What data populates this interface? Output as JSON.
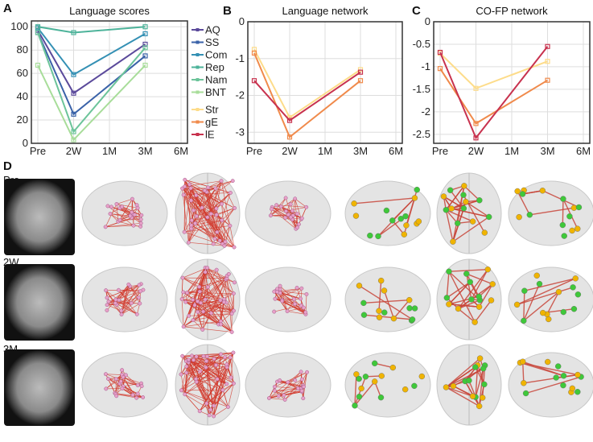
{
  "panels": {
    "A": "A",
    "B": "B",
    "C": "C",
    "D": "D"
  },
  "rows": [
    "Pre",
    "2W",
    "3M"
  ],
  "chart_data": [
    {
      "type": "line",
      "title": "Language scores",
      "categories": [
        "Pre",
        "2W",
        "1M",
        "3M",
        "6M"
      ],
      "ylim": [
        0,
        105
      ],
      "yticks": [
        0,
        20,
        40,
        60,
        80,
        100
      ],
      "series": [
        {
          "name": "AQ",
          "color": "#5b4a9b",
          "values": [
            97,
            43,
            null,
            85,
            null
          ]
        },
        {
          "name": "SS",
          "color": "#3a62a8",
          "values": [
            95,
            25,
            null,
            75,
            null
          ]
        },
        {
          "name": "Com",
          "color": "#3490b4",
          "values": [
            99,
            59,
            null,
            94,
            null
          ]
        },
        {
          "name": "Rep",
          "color": "#4db39a",
          "values": [
            100,
            95,
            null,
            100,
            null
          ]
        },
        {
          "name": "Nam",
          "color": "#6cc49a",
          "values": [
            95,
            10,
            null,
            82,
            null
          ]
        },
        {
          "name": "BNT",
          "color": "#a8dd9a",
          "values": [
            67,
            3,
            null,
            67,
            null
          ]
        }
      ],
      "legend_extra": [
        {
          "name": "Str",
          "color": "#fddc8a"
        },
        {
          "name": "gE",
          "color": "#f08a4b"
        },
        {
          "name": "lE",
          "color": "#c8324e"
        }
      ],
      "legend": "right",
      "grid": true
    },
    {
      "type": "line",
      "title": "Language network",
      "categories": [
        "Pre",
        "2W",
        "1M",
        "3M",
        "6M"
      ],
      "ylim": [
        -3.3,
        0
      ],
      "yticks": [
        -3,
        -2,
        -1,
        0
      ],
      "series": [
        {
          "name": "Str",
          "color": "#fddc8a",
          "values": [
            -0.75,
            -2.6,
            null,
            -1.3,
            null
          ]
        },
        {
          "name": "gE",
          "color": "#f08a4b",
          "values": [
            -0.85,
            -3.13,
            null,
            -1.6,
            null
          ]
        },
        {
          "name": "lE",
          "color": "#c8324e",
          "values": [
            -1.6,
            -2.68,
            null,
            -1.37,
            null
          ]
        }
      ],
      "grid": true
    },
    {
      "type": "line",
      "title": "CO-FP network",
      "categories": [
        "Pre",
        "2W",
        "1M",
        "3M",
        "6M"
      ],
      "ylim": [
        -2.7,
        0
      ],
      "yticks": [
        -2.5,
        -2,
        -1.5,
        -1,
        -0.5,
        0
      ],
      "series": [
        {
          "name": "Str",
          "color": "#fddc8a",
          "values": [
            -0.7,
            -1.48,
            null,
            -0.88,
            null
          ]
        },
        {
          "name": "gE",
          "color": "#f08a4b",
          "values": [
            -1.04,
            -2.26,
            null,
            -1.3,
            null
          ]
        },
        {
          "name": "lE",
          "color": "#c8324e",
          "values": [
            -0.68,
            -2.58,
            null,
            -0.55,
            null
          ]
        }
      ],
      "grid": true
    }
  ]
}
